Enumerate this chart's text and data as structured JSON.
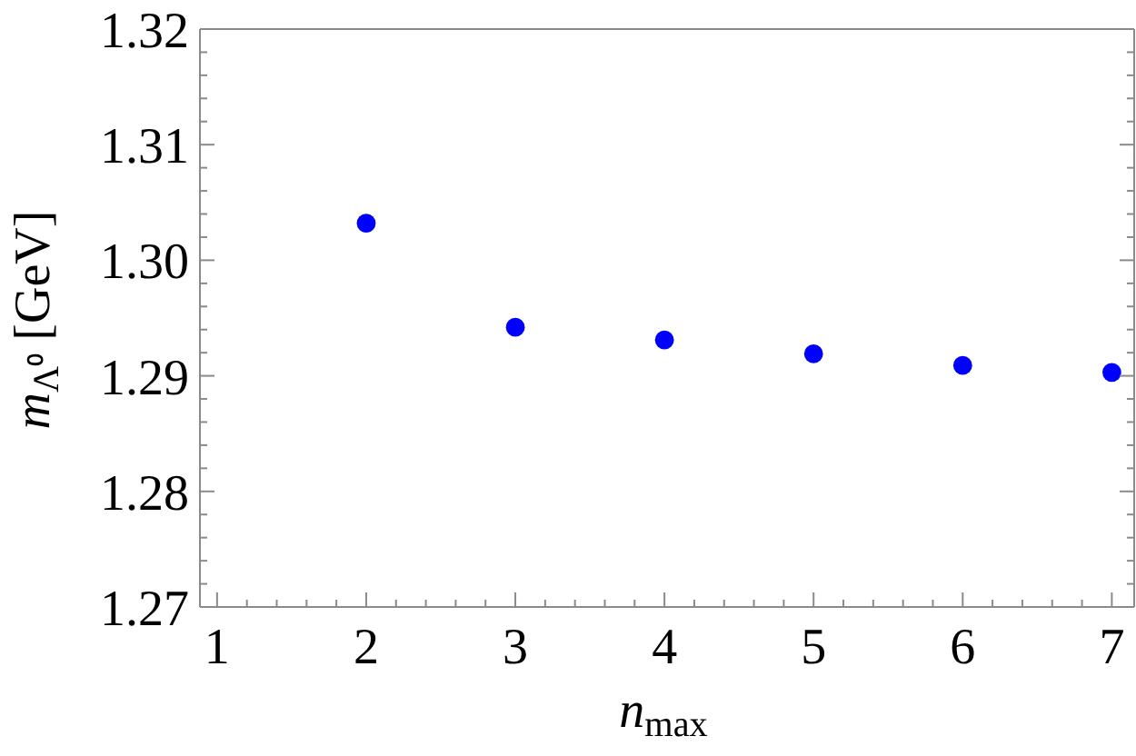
{
  "chart_data": {
    "type": "scatter",
    "xlabel": "n$_{max}$",
    "ylabel": "m$_{Λ⁰}$ [GeV]",
    "x": [
      2,
      3,
      4,
      5,
      6,
      7
    ],
    "values": [
      1.3032,
      1.2942,
      1.2931,
      1.2919,
      1.2909,
      1.2903
    ],
    "color": "#0000ff",
    "marker": "circle",
    "xlim": [
      0.885,
      7.15
    ],
    "ylim": [
      1.27,
      1.32
    ],
    "xticks": [
      1,
      {
        "value": 1.2,
        "label": null
      },
      {
        "value": 1.4,
        "label": null
      },
      {
        "value": 1.6,
        "label": null
      },
      {
        "value": 1.8,
        "label": null
      },
      2,
      {
        "value": 2.2,
        "label": null
      },
      {
        "value": 2.4,
        "label": null
      },
      {
        "value": 2.6,
        "label": null
      },
      {
        "value": 2.8,
        "label": null
      },
      3,
      {
        "value": 3.2,
        "label": null
      },
      {
        "value": 3.4,
        "label": null
      },
      {
        "value": 3.6,
        "label": null
      },
      {
        "value": 3.8,
        "label": null
      },
      4,
      {
        "value": 4.2,
        "label": null
      },
      {
        "value": 4.4,
        "label": null
      },
      {
        "value": 4.6,
        "label": null
      },
      {
        "value": 4.8,
        "label": null
      },
      5,
      {
        "value": 5.2,
        "label": null
      },
      {
        "value": 5.4,
        "label": null
      },
      {
        "value": 5.6,
        "label": null
      },
      {
        "value": 5.8,
        "label": null
      },
      6,
      {
        "value": 6.2,
        "label": null
      },
      {
        "value": 6.4,
        "label": null
      },
      {
        "value": 6.6,
        "label": null
      },
      {
        "value": 6.8,
        "label": null
      },
      7
    ],
    "yticks": [
      1.27,
      {
        "value": 1.272,
        "label": null
      },
      {
        "value": 1.274,
        "label": null
      },
      {
        "value": 1.276,
        "label": null
      },
      {
        "value": 1.278,
        "label": null
      },
      {
        "value": 1.28,
        "label": "1.28"
      },
      {
        "value": 1.282,
        "label": null
      },
      {
        "value": 1.284,
        "label": null
      },
      {
        "value": 1.286,
        "label": null
      },
      {
        "value": 1.288,
        "label": null
      },
      1.29,
      {
        "value": 1.292,
        "label": null
      },
      {
        "value": 1.294,
        "label": null
      },
      {
        "value": 1.296,
        "label": null
      },
      {
        "value": 1.298,
        "label": null
      },
      {
        "value": 1.3,
        "label": "1.30"
      },
      {
        "value": 1.302,
        "label": null
      },
      {
        "value": 1.304,
        "label": null
      },
      {
        "value": 1.306,
        "label": null
      },
      {
        "value": 1.308,
        "label": null
      },
      1.31,
      {
        "value": 1.312,
        "label": null
      },
      {
        "value": 1.314,
        "label": null
      },
      {
        "value": 1.316,
        "label": null
      },
      {
        "value": 1.318,
        "label": null
      },
      1.32
    ]
  }
}
